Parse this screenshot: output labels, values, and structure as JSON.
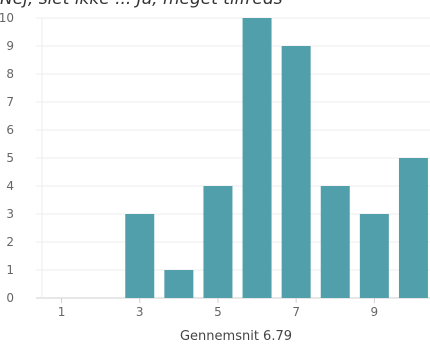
{
  "header": {
    "clipped_heading": "Nej, slet ikke   ...   Ja, meget tilfreds"
  },
  "chart_data": {
    "type": "bar",
    "categories": [
      "1",
      "2",
      "3",
      "4",
      "5",
      "6",
      "7",
      "8",
      "9",
      "10"
    ],
    "values": [
      0,
      0,
      3,
      1,
      4,
      10,
      9,
      4,
      3,
      5
    ],
    "x_tick_labels": [
      "1",
      "3",
      "5",
      "7",
      "9"
    ],
    "y_tick_labels": [
      "0",
      "1",
      "2",
      "3",
      "4",
      "5",
      "6",
      "7",
      "8",
      "9",
      "10"
    ],
    "ylim": [
      0,
      10
    ],
    "grid": true,
    "bar_color": "#529fac",
    "title": "",
    "xlabel": "Gennemsnit 6.79",
    "ylabel": ""
  }
}
